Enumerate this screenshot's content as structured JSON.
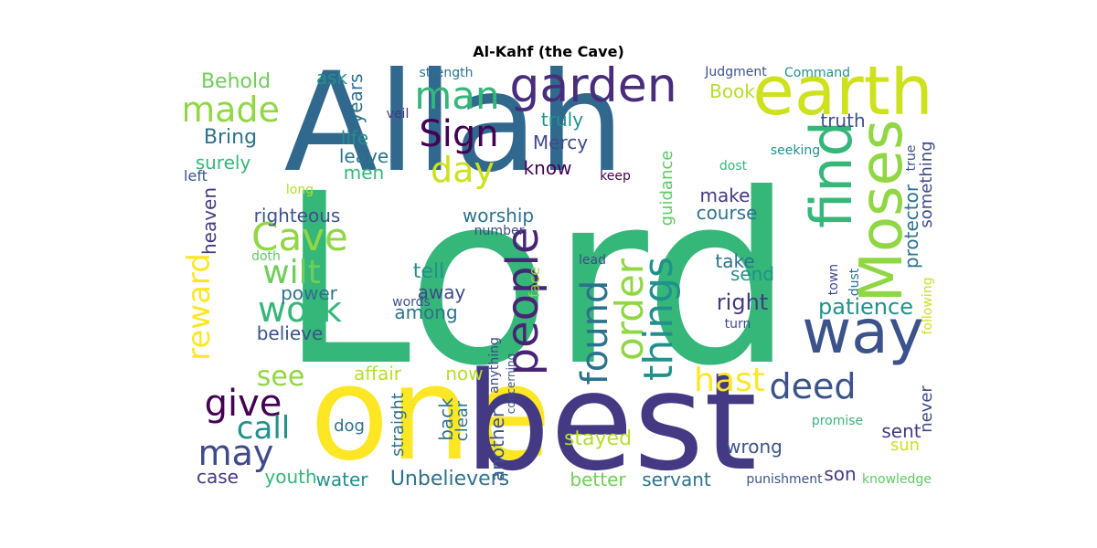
{
  "title": "Al-Kahf (the Cave)",
  "words": [
    {
      "text": "Lord",
      "color": "#35b779",
      "orient": "h"
    },
    {
      "text": "Allah",
      "color": "#31688e",
      "orient": "h"
    },
    {
      "text": "one",
      "color": "#fde725",
      "orient": "h"
    },
    {
      "text": "best",
      "color": "#443983",
      "orient": "h"
    },
    {
      "text": "earth",
      "color": "#cde11d",
      "orient": "h"
    },
    {
      "text": "garden",
      "color": "#472d7b",
      "orient": "h"
    },
    {
      "text": "find",
      "color": "#35b779",
      "orient": "v"
    },
    {
      "text": "Moses",
      "color": "#90d743",
      "orient": "v"
    },
    {
      "text": "way",
      "color": "#3b528b",
      "orient": "h"
    },
    {
      "text": "people",
      "color": "#482475",
      "orient": "v"
    },
    {
      "text": "found",
      "color": "#2c728e",
      "orient": "v"
    },
    {
      "text": "order",
      "color": "#90d743",
      "orient": "v"
    },
    {
      "text": "things",
      "color": "#21918c",
      "orient": "v"
    },
    {
      "text": "man",
      "color": "#35b779",
      "orient": "h"
    },
    {
      "text": "Sign",
      "color": "#440154",
      "orient": "h"
    },
    {
      "text": "day",
      "color": "#cde11d",
      "orient": "h"
    },
    {
      "text": "made",
      "color": "#90d743",
      "orient": "h"
    },
    {
      "text": "Cave",
      "color": "#90d743",
      "orient": "h"
    },
    {
      "text": "wilt",
      "color": "#6ece58",
      "orient": "h"
    },
    {
      "text": "work",
      "color": "#35b779",
      "orient": "h"
    },
    {
      "text": "reward",
      "color": "#fde725",
      "orient": "v"
    },
    {
      "text": "give",
      "color": "#440154",
      "orient": "h"
    },
    {
      "text": "call",
      "color": "#21918c",
      "orient": "h"
    },
    {
      "text": "may",
      "color": "#3e4a89",
      "orient": "h"
    },
    {
      "text": "see",
      "color": "#90d743",
      "orient": "h"
    },
    {
      "text": "hast",
      "color": "#fde725",
      "orient": "h"
    },
    {
      "text": "deed",
      "color": "#3b528b",
      "orient": "h"
    },
    {
      "text": "patience",
      "color": "#21918c",
      "orient": "h"
    },
    {
      "text": "right",
      "color": "#443983",
      "orient": "h"
    },
    {
      "text": "Behold",
      "color": "#6ece58",
      "orient": "h"
    },
    {
      "text": "ask",
      "color": "#21918c",
      "orient": "h"
    },
    {
      "text": "years",
      "color": "#2c728e",
      "orient": "v"
    },
    {
      "text": "Bring",
      "color": "#2c728e",
      "orient": "h"
    },
    {
      "text": "life",
      "color": "#21918c",
      "orient": "h"
    },
    {
      "text": "surely",
      "color": "#35b779",
      "orient": "h"
    },
    {
      "text": "leave",
      "color": "#2c728e",
      "orient": "h"
    },
    {
      "text": "men",
      "color": "#35b779",
      "orient": "h"
    },
    {
      "text": "left",
      "color": "#3b528b",
      "orient": "h"
    },
    {
      "text": "heaven",
      "color": "#443983",
      "orient": "v"
    },
    {
      "text": "long",
      "color": "#b5de2b",
      "orient": "h"
    },
    {
      "text": "righteous",
      "color": "#3b528b",
      "orient": "h"
    },
    {
      "text": "doth",
      "color": "#5ec962",
      "orient": "h"
    },
    {
      "text": "power",
      "color": "#2c728e",
      "orient": "h"
    },
    {
      "text": "believe",
      "color": "#3b528b",
      "orient": "h"
    },
    {
      "text": "tell",
      "color": "#21918c",
      "orient": "h"
    },
    {
      "text": "away",
      "color": "#3e4a89",
      "orient": "h"
    },
    {
      "text": "words",
      "color": "#3b528b",
      "orient": "h"
    },
    {
      "text": "among",
      "color": "#2c728e",
      "orient": "h"
    },
    {
      "text": "affair",
      "color": "#b5de2b",
      "orient": "h"
    },
    {
      "text": "now",
      "color": "#b5de2b",
      "orient": "h"
    },
    {
      "text": "anything",
      "color": "#3e4a89",
      "orient": "v"
    },
    {
      "text": "straight",
      "color": "#2c728e",
      "orient": "v"
    },
    {
      "text": "dog",
      "color": "#2c728e",
      "orient": "h"
    },
    {
      "text": "back",
      "color": "#2c728e",
      "orient": "v"
    },
    {
      "text": "clear",
      "color": "#2c728e",
      "orient": "v"
    },
    {
      "text": "another",
      "color": "#3b528b",
      "orient": "v"
    },
    {
      "text": "water",
      "color": "#21918c",
      "orient": "h"
    },
    {
      "text": "Unbelievers",
      "color": "#2c728e",
      "orient": "h"
    },
    {
      "text": "youth",
      "color": "#35b779",
      "orient": "h"
    },
    {
      "text": "case",
      "color": "#443983",
      "orient": "h"
    },
    {
      "text": "strength",
      "color": "#2c728e",
      "orient": "h"
    },
    {
      "text": "veil",
      "color": "#443983",
      "orient": "h"
    },
    {
      "text": "truly",
      "color": "#21918c",
      "orient": "h"
    },
    {
      "text": "Mercy",
      "color": "#3e4a89",
      "orient": "h"
    },
    {
      "text": "know",
      "color": "#440154",
      "orient": "h"
    },
    {
      "text": "worship",
      "color": "#2c728e",
      "orient": "h"
    },
    {
      "text": "number",
      "color": "#3e4a89",
      "orient": "h"
    },
    {
      "text": "face",
      "color": "#90d743",
      "orient": "v"
    },
    {
      "text": "lead",
      "color": "#3e4a89",
      "orient": "h"
    },
    {
      "text": "keep",
      "color": "#440154",
      "orient": "h"
    },
    {
      "text": "guidance",
      "color": "#5ec962",
      "orient": "v"
    },
    {
      "text": "make",
      "color": "#443983",
      "orient": "h"
    },
    {
      "text": "course",
      "color": "#2c728e",
      "orient": "h"
    },
    {
      "text": "take",
      "color": "#2c728e",
      "orient": "h"
    },
    {
      "text": "send",
      "color": "#21918c",
      "orient": "h"
    },
    {
      "text": "turn",
      "color": "#3e4a89",
      "orient": "h"
    },
    {
      "text": "Book",
      "color": "#b5de2b",
      "orient": "h"
    },
    {
      "text": "Judgment",
      "color": "#3b528b",
      "orient": "h"
    },
    {
      "text": "Command",
      "color": "#21918c",
      "orient": "h"
    },
    {
      "text": "truth",
      "color": "#3b528b",
      "orient": "h"
    },
    {
      "text": "dost",
      "color": "#35b779",
      "orient": "h"
    },
    {
      "text": "seeking",
      "color": "#21918c",
      "orient": "h"
    },
    {
      "text": "protector",
      "color": "#2c728e",
      "orient": "v"
    },
    {
      "text": "true",
      "color": "#3b528b",
      "orient": "v"
    },
    {
      "text": "something",
      "color": "#3e4a89",
      "orient": "v"
    },
    {
      "text": "town",
      "color": "#3e4a89",
      "orient": "v"
    },
    {
      "text": "dust",
      "color": "#2c728e",
      "orient": "v"
    },
    {
      "text": "following",
      "color": "#cde11d",
      "orient": "v"
    },
    {
      "text": "stayed",
      "color": "#b5de2b",
      "orient": "h"
    },
    {
      "text": "wrong",
      "color": "#3b528b",
      "orient": "h"
    },
    {
      "text": "better",
      "color": "#6ece58",
      "orient": "h"
    },
    {
      "text": "servant",
      "color": "#2c728e",
      "orient": "h"
    },
    {
      "text": "promise",
      "color": "#35b779",
      "orient": "h"
    },
    {
      "text": "sent",
      "color": "#443983",
      "orient": "h"
    },
    {
      "text": "sun",
      "color": "#cde11d",
      "orient": "h"
    },
    {
      "text": "never",
      "color": "#3e4a89",
      "orient": "v"
    },
    {
      "text": "son",
      "color": "#443983",
      "orient": "h"
    },
    {
      "text": "punishment",
      "color": "#3b528b",
      "orient": "h"
    },
    {
      "text": "knowledge",
      "color": "#5ec962",
      "orient": "h"
    },
    {
      "text": "concerning",
      "color": "#3b528b",
      "orient": "v"
    }
  ]
}
